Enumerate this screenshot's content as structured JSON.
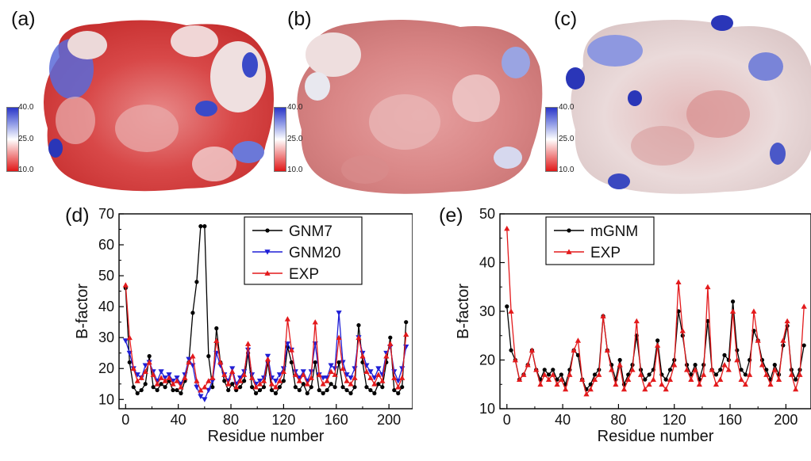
{
  "panel_labels": {
    "a": "(a)",
    "b": "(b)",
    "c": "(c)",
    "d": "(d)",
    "e": "(e)"
  },
  "colorbar": {
    "max": "40.0",
    "mid": "25.0",
    "min": "10.0",
    "colors": [
      "#2a36c8",
      "#ffffff",
      "#e01818"
    ]
  },
  "chart_data": [
    {
      "type": "line",
      "panel": "(d)",
      "xlabel": "Residue number",
      "ylabel": "B-factor",
      "xlim": [
        -5,
        218
      ],
      "ylim": [
        7,
        70
      ],
      "xticks": [
        0,
        40,
        80,
        120,
        160,
        200
      ],
      "yticks": [
        10,
        20,
        30,
        40,
        50,
        60,
        70
      ],
      "legend_position": "top-right",
      "x": [
        0,
        3,
        6,
        9,
        12,
        15,
        18,
        21,
        24,
        27,
        30,
        33,
        36,
        39,
        42,
        45,
        48,
        51,
        54,
        57,
        60,
        63,
        66,
        69,
        72,
        75,
        78,
        81,
        84,
        87,
        90,
        93,
        96,
        99,
        102,
        105,
        108,
        111,
        114,
        117,
        120,
        123,
        126,
        129,
        132,
        135,
        138,
        141,
        144,
        147,
        150,
        153,
        156,
        159,
        162,
        165,
        168,
        171,
        174,
        177,
        180,
        183,
        186,
        189,
        192,
        195,
        198,
        201,
        204,
        207,
        210,
        213
      ],
      "series": [
        {
          "name": "GNM7",
          "color": "#000000",
          "marker": "circle",
          "values": [
            46,
            22,
            14,
            12,
            13,
            15,
            24,
            14,
            13,
            15,
            14,
            16,
            13,
            13,
            12,
            16,
            22,
            38,
            48,
            66,
            66,
            24,
            14,
            33,
            22,
            16,
            13,
            15,
            13,
            14,
            16,
            25,
            14,
            12,
            13,
            14,
            22,
            13,
            12,
            14,
            16,
            27,
            22,
            14,
            13,
            15,
            12,
            14,
            22,
            13,
            12,
            13,
            15,
            14,
            22,
            14,
            13,
            12,
            14,
            34,
            22,
            14,
            13,
            12,
            15,
            14,
            22,
            30,
            13,
            12,
            14,
            35
          ]
        },
        {
          "name": "GNM20",
          "color": "#1f1fd6",
          "marker": "triangle-down",
          "values": [
            29,
            25,
            20,
            18,
            17,
            21,
            22,
            19,
            16,
            19,
            17,
            18,
            16,
            17,
            15,
            18,
            23,
            21,
            14,
            11,
            10,
            13,
            16,
            25,
            21,
            18,
            16,
            20,
            15,
            17,
            19,
            26,
            18,
            15,
            16,
            17,
            24,
            17,
            16,
            18,
            20,
            28,
            26,
            19,
            17,
            19,
            16,
            19,
            28,
            18,
            17,
            17,
            21,
            20,
            38,
            22,
            18,
            17,
            20,
            30,
            25,
            21,
            19,
            17,
            20,
            18,
            25,
            27,
            19,
            16,
            20,
            27
          ]
        },
        {
          "name": "EXP",
          "color": "#e31a1c",
          "marker": "triangle-up",
          "values": [
            47,
            30,
            20,
            16,
            17,
            19,
            22,
            18,
            15,
            17,
            16,
            17,
            15,
            16,
            14,
            17,
            22,
            24,
            16,
            13,
            14,
            16,
            17,
            29,
            22,
            18,
            15,
            19,
            14,
            16,
            18,
            28,
            17,
            14,
            15,
            16,
            23,
            15,
            14,
            16,
            19,
            36,
            26,
            18,
            16,
            18,
            15,
            17,
            35,
            18,
            15,
            16,
            19,
            18,
            30,
            20,
            16,
            15,
            17,
            30,
            24,
            19,
            17,
            15,
            18,
            16,
            24,
            28,
            17,
            14,
            17,
            31
          ]
        }
      ]
    },
    {
      "type": "line",
      "panel": "(e)",
      "xlabel": "Residue number",
      "ylabel": "B-factor",
      "xlim": [
        -5,
        218
      ],
      "ylim": [
        10,
        50
      ],
      "xticks": [
        0,
        40,
        80,
        120,
        160,
        200
      ],
      "yticks": [
        10,
        20,
        30,
        40,
        50
      ],
      "legend_position": "top-left",
      "x": [
        0,
        3,
        6,
        9,
        12,
        15,
        18,
        21,
        24,
        27,
        30,
        33,
        36,
        39,
        42,
        45,
        48,
        51,
        54,
        57,
        60,
        63,
        66,
        69,
        72,
        75,
        78,
        81,
        84,
        87,
        90,
        93,
        96,
        99,
        102,
        105,
        108,
        111,
        114,
        117,
        120,
        123,
        126,
        129,
        132,
        135,
        138,
        141,
        144,
        147,
        150,
        153,
        156,
        159,
        162,
        165,
        168,
        171,
        174,
        177,
        180,
        183,
        186,
        189,
        192,
        195,
        198,
        201,
        204,
        207,
        210,
        213
      ],
      "series": [
        {
          "name": "mGNM",
          "color": "#000000",
          "marker": "circle",
          "values": [
            31,
            22,
            20,
            16,
            17,
            19,
            22,
            18,
            16,
            18,
            17,
            18,
            16,
            17,
            15,
            18,
            22,
            21,
            16,
            14,
            15,
            17,
            18,
            29,
            22,
            19,
            16,
            20,
            15,
            17,
            19,
            25,
            18,
            16,
            17,
            18,
            24,
            17,
            16,
            18,
            20,
            30,
            25,
            19,
            17,
            19,
            16,
            19,
            28,
            18,
            17,
            18,
            21,
            20,
            32,
            22,
            18,
            17,
            20,
            26,
            24,
            20,
            18,
            16,
            19,
            17,
            23,
            27,
            18,
            16,
            18,
            23
          ]
        },
        {
          "name": "EXP",
          "color": "#e31a1c",
          "marker": "triangle-up",
          "values": [
            47,
            30,
            20,
            16,
            17,
            19,
            22,
            18,
            15,
            17,
            16,
            17,
            15,
            16,
            14,
            17,
            22,
            24,
            16,
            13,
            14,
            16,
            17,
            29,
            22,
            18,
            15,
            19,
            14,
            16,
            18,
            28,
            17,
            14,
            15,
            16,
            23,
            15,
            14,
            16,
            19,
            36,
            26,
            18,
            16,
            18,
            15,
            17,
            35,
            18,
            15,
            16,
            19,
            18,
            30,
            20,
            16,
            15,
            17,
            30,
            24,
            19,
            17,
            15,
            18,
            16,
            24,
            28,
            17,
            14,
            17,
            31
          ]
        }
      ]
    }
  ]
}
